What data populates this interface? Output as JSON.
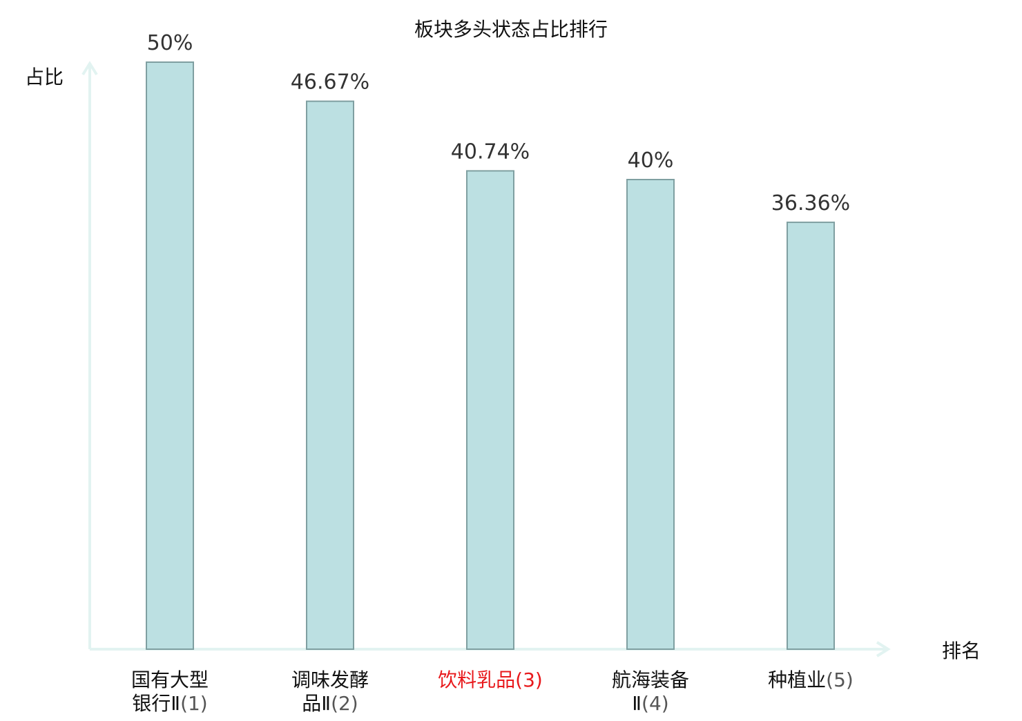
{
  "chart_data": {
    "type": "bar",
    "title": "板块多头状态占比排行",
    "xlabel": "排名",
    "ylabel": "占比",
    "categories": [
      {
        "name": "国有大型银行Ⅱ",
        "rank": "(1)",
        "highlight": false
      },
      {
        "name": "调味发酵品Ⅱ",
        "rank": "(2)",
        "highlight": false
      },
      {
        "name": "饮料乳品",
        "rank": "(3)",
        "highlight": true
      },
      {
        "name": "航海装备Ⅱ",
        "rank": "(4)",
        "highlight": false
      },
      {
        "name": "种植业",
        "rank": "(5)",
        "highlight": false
      }
    ],
    "values": [
      50,
      46.67,
      40.74,
      40,
      36.36
    ],
    "value_labels": [
      "50%",
      "46.67%",
      "40.74%",
      "40%",
      "36.36%"
    ],
    "ylim": [
      0,
      50
    ],
    "grid": false,
    "legend": "none"
  },
  "colors": {
    "bar_fill": "#bce0e2",
    "bar_stroke": "#7f9fa1",
    "axis": "#e2f3f1",
    "text": "#333333",
    "title": "#111111",
    "highlight": "#e8191c"
  }
}
